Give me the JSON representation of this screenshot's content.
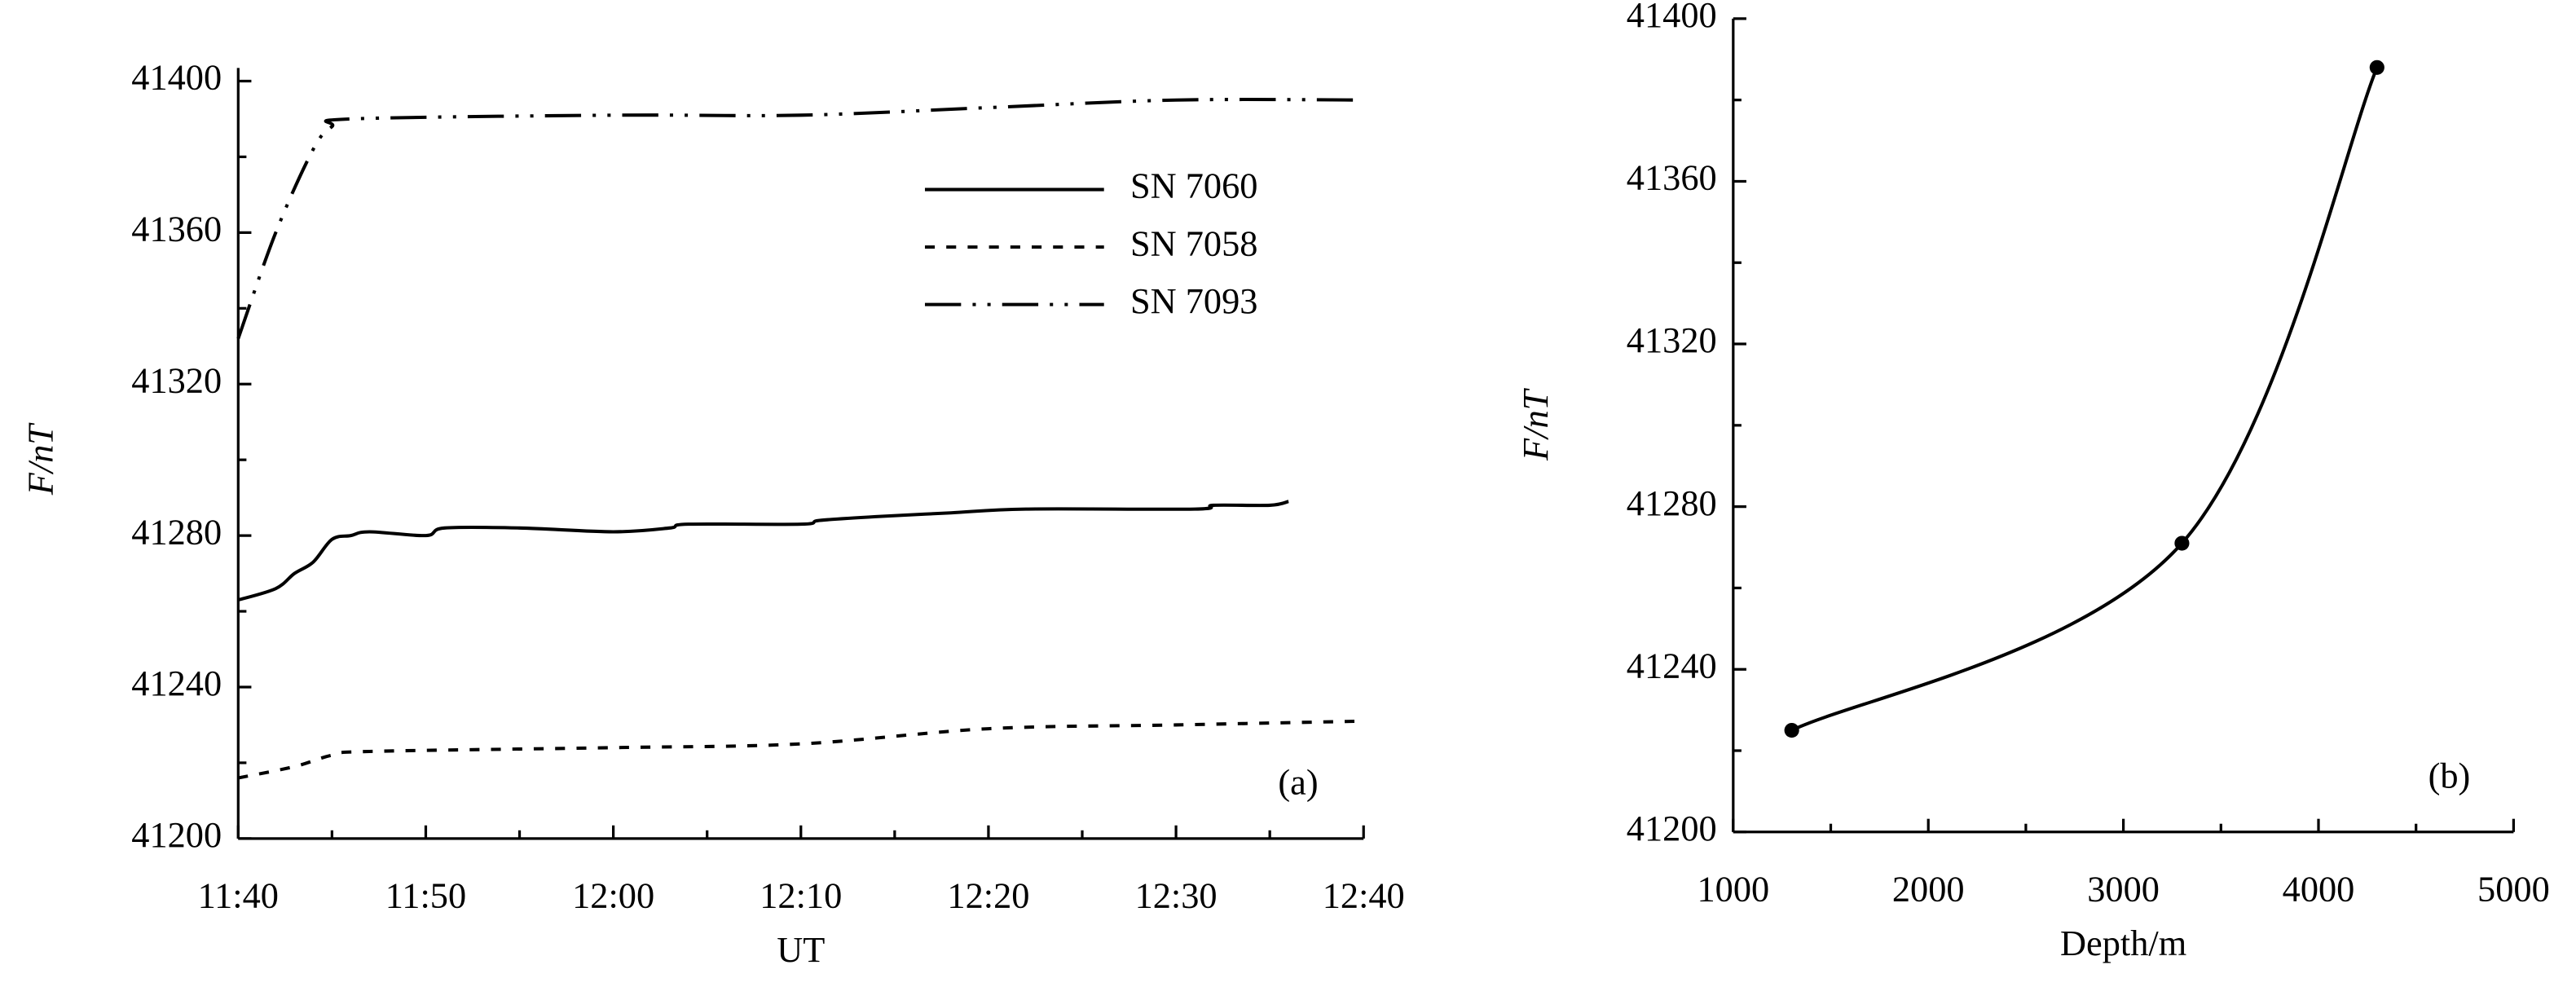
{
  "chart_data": [
    {
      "type": "line",
      "x_label": "UT",
      "y_label": "F/nT",
      "annotation": "(a)",
      "xlim": [
        "11:40",
        "12:40"
      ],
      "xticks": [
        "11:40",
        "11:50",
        "12:00",
        "12:10",
        "12:20",
        "12:30",
        "12:40"
      ],
      "ylim": [
        41200,
        41400
      ],
      "yticks": [
        41200,
        41240,
        41280,
        41320,
        41360,
        41400
      ],
      "legend": "upper right",
      "series": [
        {
          "name": "SN 7060",
          "color": "#000000",
          "line_style": "solid",
          "x": [
            "11:40",
            "11:42",
            "11:43",
            "11:44",
            "11:45",
            "11:46",
            "11:47",
            "11:50",
            "11:51",
            "11:55",
            "12:00",
            "12:03",
            "12:04",
            "12:10",
            "12:11",
            "12:14",
            "12:18",
            "12:22",
            "12:31",
            "12:32",
            "12:35",
            "12:36"
          ],
          "values": [
            41263,
            41266,
            41270,
            41273,
            41279,
            41280,
            41281,
            41280,
            41282,
            41282,
            41281,
            41282,
            41283,
            41283,
            41284,
            41285,
            41286,
            41287,
            41287,
            41288,
            41288,
            41289
          ]
        },
        {
          "name": "SN 7058",
          "color": "#000000",
          "line_style": "dashed",
          "x": [
            "11:40",
            "11:43",
            "11:45",
            "11:47",
            "12:00",
            "12:10",
            "12:20",
            "12:30",
            "12:40"
          ],
          "values": [
            41216,
            41219,
            41222,
            41223,
            41224,
            41225,
            41229,
            41230,
            41231
          ]
        },
        {
          "name": "SN 7093",
          "color": "#000000",
          "line_style": "dash-dot-dot",
          "x": [
            "11:40",
            "11:42",
            "11:44",
            "11:45",
            "11:46",
            "12:00",
            "12:10",
            "12:20",
            "12:30",
            "12:40"
          ],
          "values": [
            41332,
            41360,
            41382,
            41388,
            41390,
            41391,
            41391,
            41393,
            41395,
            41395
          ]
        }
      ]
    },
    {
      "type": "line",
      "x_label": "Depth/m",
      "y_label": "F/nT",
      "annotation": "(b)",
      "xlim": [
        1000,
        5000
      ],
      "xticks": [
        1000,
        2000,
        3000,
        4000,
        5000
      ],
      "ylim": [
        41200,
        41400
      ],
      "yticks": [
        41200,
        41240,
        41280,
        41320,
        41360,
        41400
      ],
      "markers": true,
      "series": [
        {
          "color": "#000000",
          "line_style": "solid",
          "x": [
            1300,
            3300,
            4300
          ],
          "values": [
            41225,
            41271,
            41388
          ]
        }
      ]
    }
  ]
}
